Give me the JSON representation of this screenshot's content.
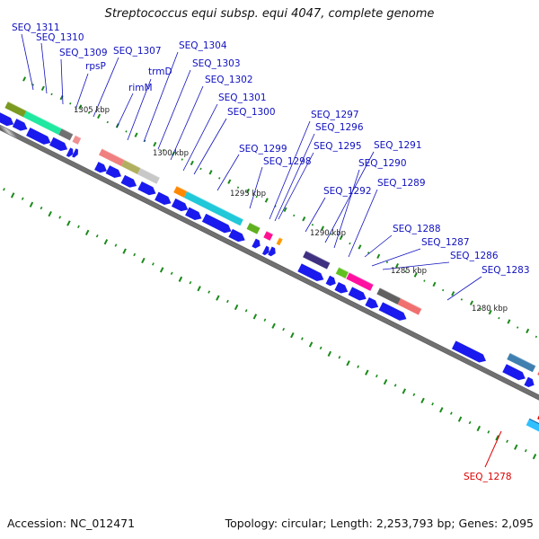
{
  "title": "Streptococcus equi subsp. equi 4047, complete genome",
  "footer": {
    "accession": "Accession: NC_012471",
    "summary": "Topology: circular; Length: 2,253,793 bp; Genes: 2,095"
  },
  "colors": {
    "label": "#1010c0",
    "highlight": "#dd0000",
    "cds": "#1a1aee"
  },
  "kbp_marks": [
    "1305 kbp",
    "1300 kbp",
    "1295 kbp",
    "1290 kbp",
    "1285 kbp",
    "1280 kbp"
  ],
  "gene_labels": [
    {
      "text": "SEQ_1311"
    },
    {
      "text": "SEQ_1310"
    },
    {
      "text": "SEQ_1309"
    },
    {
      "text": "rpsP"
    },
    {
      "text": "SEQ_1307"
    },
    {
      "text": "trmD"
    },
    {
      "text": "rimM"
    },
    {
      "text": "SEQ_1304"
    },
    {
      "text": "SEQ_1303"
    },
    {
      "text": "SEQ_1302"
    },
    {
      "text": "SEQ_1301"
    },
    {
      "text": "SEQ_1300"
    },
    {
      "text": "SEQ_1299"
    },
    {
      "text": "SEQ_1298"
    },
    {
      "text": "SEQ_1297"
    },
    {
      "text": "SEQ_1296"
    },
    {
      "text": "SEQ_1295"
    },
    {
      "text": "SEQ_1291"
    },
    {
      "text": "SEQ_1290"
    },
    {
      "text": "SEQ_1292"
    },
    {
      "text": "SEQ_1289"
    },
    {
      "text": "SEQ_1288"
    },
    {
      "text": "SEQ_1287"
    },
    {
      "text": "SEQ_1286"
    },
    {
      "text": "SEQ_1283"
    },
    {
      "text": "SEQ_1278",
      "highlight": true
    }
  ]
}
